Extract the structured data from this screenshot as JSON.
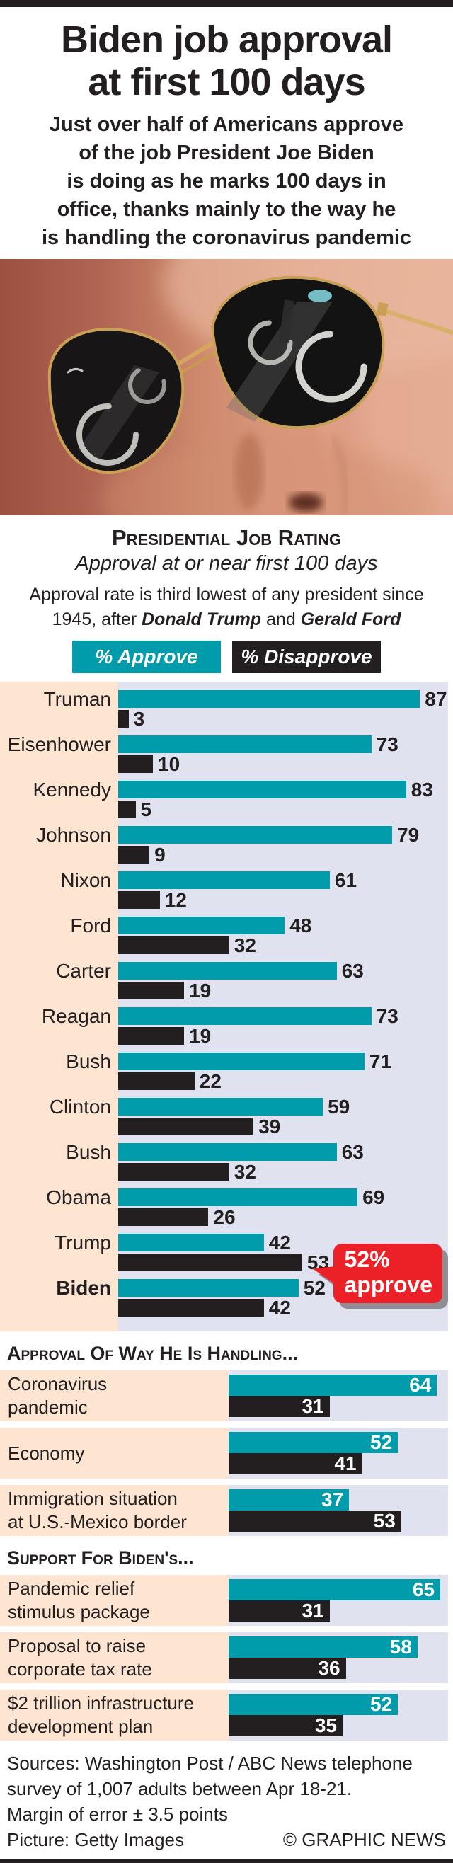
{
  "masthead": {
    "title": "Biden job approval\nat first 100 days",
    "subtitle": "Just over half of Americans approve\nof the job President Joe Biden\nis doing as he marks 100 days in\noffice, thanks mainly to the way he\nis handling the coronavirus pandemic"
  },
  "note": {
    "prefix": "Approval rate is third lowest of any president since\n1945, after ",
    "name1": "Donald Trump",
    "middle": " and ",
    "name2": "Gerald Ford"
  },
  "colors": {
    "approve": "#009cab",
    "disapprove": "#231f20",
    "label_bg": "#fde5d2",
    "chart_bg": "#e1e2ef",
    "callout_red": "#ec2127"
  },
  "callout": {
    "line1": "52%",
    "line2": "approve"
  },
  "chart_data": [
    {
      "type": "bar",
      "title": "Presidential Job Rating",
      "subtitle": "Approval at or near first 100 days",
      "categories": [
        "Truman",
        "Eisenhower",
        "Kennedy",
        "Johnson",
        "Nixon",
        "Ford",
        "Carter",
        "Reagan",
        "Bush",
        "Clinton",
        "Bush",
        "Obama",
        "Trump",
        "Biden"
      ],
      "series": [
        {
          "name": "% Approve",
          "values": [
            87,
            73,
            83,
            79,
            61,
            48,
            63,
            73,
            71,
            59,
            63,
            69,
            42,
            52
          ]
        },
        {
          "name": "% Disapprove",
          "values": [
            3,
            10,
            5,
            9,
            12,
            32,
            19,
            19,
            22,
            39,
            32,
            26,
            53,
            42
          ]
        }
      ],
      "xlim": [
        0,
        100
      ],
      "value_label_position": "outside",
      "highlight_category": "Biden",
      "annotation": "52% approve",
      "legend_position": "top",
      "grid": false
    },
    {
      "type": "bar",
      "title": "Approval Of Way He Is Handling...",
      "categories": [
        "Coronavirus\npandemic",
        "Economy",
        "Immigration situation\nat U.S.-Mexico border"
      ],
      "series": [
        {
          "name": "% Approve",
          "values": [
            64,
            52,
            37
          ]
        },
        {
          "name": "% Disapprove",
          "values": [
            31,
            41,
            53
          ]
        }
      ],
      "xlim": [
        0,
        100
      ],
      "value_label_position": "inside",
      "grid": false
    },
    {
      "type": "bar",
      "title": "Support For Biden's...",
      "categories": [
        "Pandemic relief\nstimulus package",
        "Proposal to raise\ncorporate tax rate",
        "$2 trillion infrastructure\ndevelopment plan"
      ],
      "series": [
        {
          "name": "% Approve",
          "values": [
            65,
            58,
            52
          ]
        },
        {
          "name": "% Disapprove",
          "values": [
            31,
            36,
            35
          ]
        }
      ],
      "xlim": [
        0,
        100
      ],
      "value_label_position": "inside",
      "grid": false
    }
  ],
  "footer": {
    "lines": "Sources: Washington Post / ABC News telephone\nsurvey of 1,007 adults between Apr 18-21.\nMargin of error ± 3.5 points",
    "picture_credit": "Picture: Getty Images",
    "copyright": "© GRAPHIC NEWS"
  }
}
